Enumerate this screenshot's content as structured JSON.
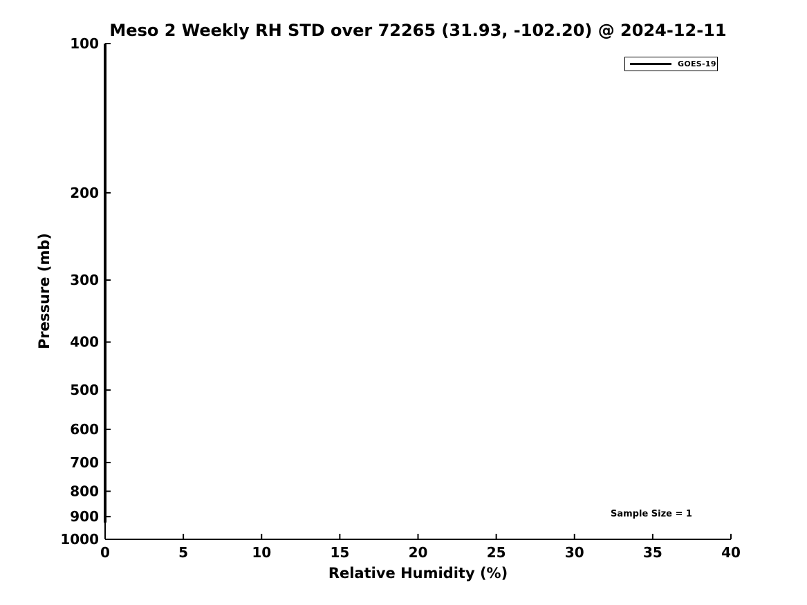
{
  "colors": {
    "foreground": "#000000",
    "background": "#ffffff"
  },
  "chart_data": {
    "type": "line",
    "title": "Meso 2 Weekly RH STD over 72265 (31.93, -102.20) @ 2024-12-11",
    "xlabel": "Relative Humidity (%)",
    "ylabel": "Pressure (mb)",
    "xlim": [
      0,
      40
    ],
    "ylim": [
      100,
      1000
    ],
    "xticks": [
      0,
      5,
      10,
      15,
      20,
      25,
      30,
      35,
      40
    ],
    "yticks": [
      100,
      200,
      300,
      400,
      500,
      600,
      700,
      800,
      900,
      1000
    ],
    "yscale": "log",
    "y_inverted": true,
    "grid": false,
    "legend_position": "upper-right",
    "series": [
      {
        "name": "GOES-19",
        "color": "#000000",
        "points": [
          {
            "pressure": 100,
            "rh_std": 0
          },
          {
            "pressure": 925,
            "rh_std": 0
          }
        ]
      }
    ],
    "annotations": [
      {
        "text": "Sample Size = 1",
        "x": 35,
        "y": 895
      }
    ]
  }
}
